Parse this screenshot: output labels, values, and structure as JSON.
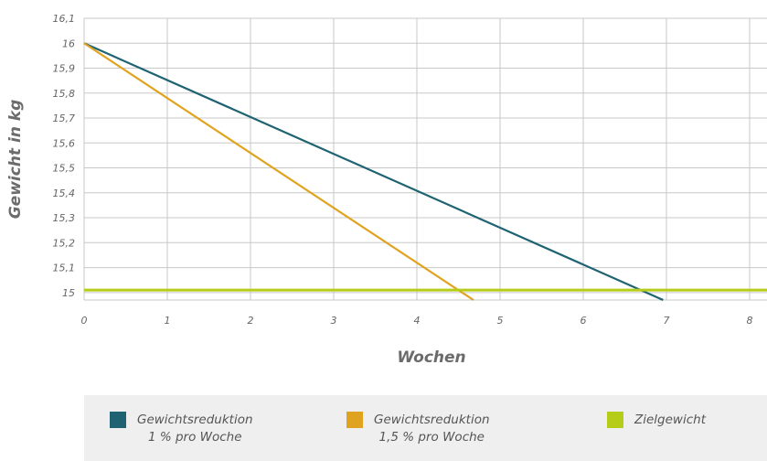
{
  "chart_data": {
    "type": "line",
    "xlabel": "Wochen",
    "ylabel": "Gewicht in kg",
    "xlim": [
      0,
      8
    ],
    "ylim": [
      14.97,
      16.1
    ],
    "x_ticks": [
      "0",
      "1",
      "2",
      "3",
      "4",
      "5",
      "6",
      "7",
      "8"
    ],
    "y_ticks": [
      "16,1",
      "16",
      "15,9",
      "15,8",
      "15,7",
      "15,6",
      "15,5",
      "15,4",
      "15,3",
      "15,2",
      "15,1",
      "15"
    ],
    "grid": true,
    "series": [
      {
        "name": "Gewichtsreduktion 1 % pro Woche",
        "color": "#1f6373",
        "points": [
          [
            0,
            16.0
          ],
          [
            6.96,
            14.97
          ]
        ]
      },
      {
        "name": "Gewichtsreduktion 1,5 % pro Woche",
        "color": "#e0a31f",
        "points": [
          [
            0,
            16.0
          ],
          [
            4.68,
            14.97
          ]
        ]
      },
      {
        "name": "Zielgewicht",
        "color": "#b5cc18",
        "points": [
          [
            0,
            15.01
          ],
          [
            8,
            15.01
          ]
        ]
      }
    ]
  },
  "legend": [
    {
      "line1": "Gewichtsreduktion",
      "line2": "1 % pro Woche",
      "color": "#1f6373"
    },
    {
      "line1": "Gewichtsreduktion",
      "line2": "1,5 % pro Woche",
      "color": "#e0a31f"
    },
    {
      "line1": "Zielgewicht",
      "line2": "",
      "color": "#b5cc18"
    }
  ]
}
